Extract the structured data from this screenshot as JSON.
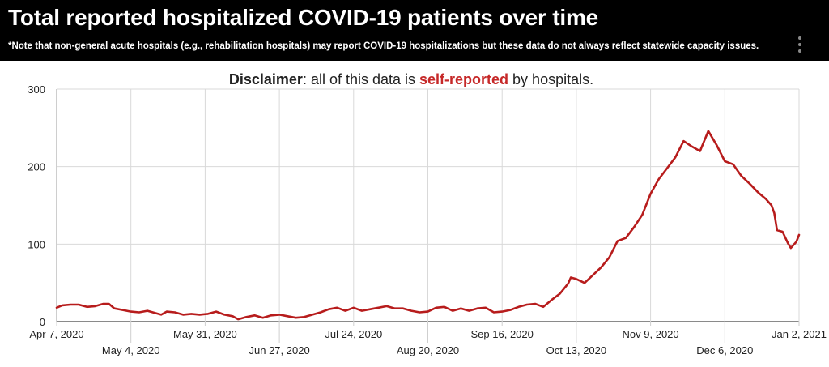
{
  "header": {
    "title": "Total reported hospitalized COVID-19 patients over time",
    "note": "*Note that non-general acute hospitals (e.g., rehabilitation hospitals) may report COVID-19 hospitalizations but these data do not always reflect statewide capacity issues.",
    "menu_icon": "more-vert-icon"
  },
  "disclaimer": {
    "bold": "Disclaimer",
    "text1": ": all of this data is ",
    "highlight": "self-reported",
    "text2": " by hospitals."
  },
  "colors": {
    "line": "#b71c1c",
    "highlight": "#c62828",
    "header_bg": "#000000"
  },
  "chart_data": {
    "type": "line",
    "title": "Total reported hospitalized COVID-19 patients over time",
    "xlabel": "",
    "ylabel": "",
    "ylim": [
      0,
      300
    ],
    "xlim": [
      "2020-04-07",
      "2021-01-02"
    ],
    "yticks": [
      "0",
      "100",
      "200",
      "300"
    ],
    "xticks": [
      {
        "date": "2020-04-07",
        "label": "Apr 7, 2020",
        "row": 1
      },
      {
        "date": "2020-05-04",
        "label": "May 4, 2020",
        "row": 2
      },
      {
        "date": "2020-05-31",
        "label": "May 31, 2020",
        "row": 1
      },
      {
        "date": "2020-06-27",
        "label": "Jun 27, 2020",
        "row": 2
      },
      {
        "date": "2020-07-24",
        "label": "Jul 24, 2020",
        "row": 1
      },
      {
        "date": "2020-08-20",
        "label": "Aug 20, 2020",
        "row": 2
      },
      {
        "date": "2020-09-16",
        "label": "Sep 16, 2020",
        "row": 1
      },
      {
        "date": "2020-10-13",
        "label": "Oct 13, 2020",
        "row": 2
      },
      {
        "date": "2020-11-09",
        "label": "Nov 9, 2020",
        "row": 1
      },
      {
        "date": "2020-12-06",
        "label": "Dec 6, 2020",
        "row": 2
      },
      {
        "date": "2021-01-02",
        "label": "Jan 2, 2021",
        "row": 1
      }
    ],
    "grid": true,
    "series": [
      {
        "color": "#b71c1c",
        "points": [
          [
            "2020-04-07",
            18
          ],
          [
            "2020-04-09",
            21
          ],
          [
            "2020-04-12",
            22
          ],
          [
            "2020-04-15",
            22
          ],
          [
            "2020-04-18",
            19
          ],
          [
            "2020-04-21",
            20
          ],
          [
            "2020-04-24",
            23
          ],
          [
            "2020-04-26",
            23
          ],
          [
            "2020-04-28",
            17
          ],
          [
            "2020-05-01",
            15
          ],
          [
            "2020-05-04",
            13
          ],
          [
            "2020-05-07",
            12
          ],
          [
            "2020-05-10",
            14
          ],
          [
            "2020-05-13",
            11
          ],
          [
            "2020-05-15",
            9
          ],
          [
            "2020-05-17",
            13
          ],
          [
            "2020-05-20",
            12
          ],
          [
            "2020-05-23",
            9
          ],
          [
            "2020-05-26",
            10
          ],
          [
            "2020-05-29",
            9
          ],
          [
            "2020-06-01",
            10
          ],
          [
            "2020-06-04",
            13
          ],
          [
            "2020-06-07",
            9
          ],
          [
            "2020-06-10",
            7
          ],
          [
            "2020-06-12",
            3
          ],
          [
            "2020-06-15",
            6
          ],
          [
            "2020-06-18",
            8
          ],
          [
            "2020-06-21",
            5
          ],
          [
            "2020-06-24",
            8
          ],
          [
            "2020-06-27",
            9
          ],
          [
            "2020-06-30",
            7
          ],
          [
            "2020-07-03",
            5
          ],
          [
            "2020-07-06",
            6
          ],
          [
            "2020-07-09",
            9
          ],
          [
            "2020-07-12",
            12
          ],
          [
            "2020-07-15",
            16
          ],
          [
            "2020-07-18",
            18
          ],
          [
            "2020-07-21",
            14
          ],
          [
            "2020-07-24",
            18
          ],
          [
            "2020-07-27",
            14
          ],
          [
            "2020-07-30",
            16
          ],
          [
            "2020-08-02",
            18
          ],
          [
            "2020-08-05",
            20
          ],
          [
            "2020-08-08",
            17
          ],
          [
            "2020-08-11",
            17
          ],
          [
            "2020-08-14",
            14
          ],
          [
            "2020-08-17",
            12
          ],
          [
            "2020-08-20",
            13
          ],
          [
            "2020-08-23",
            18
          ],
          [
            "2020-08-26",
            19
          ],
          [
            "2020-08-29",
            14
          ],
          [
            "2020-09-01",
            17
          ],
          [
            "2020-09-04",
            14
          ],
          [
            "2020-09-07",
            17
          ],
          [
            "2020-09-10",
            18
          ],
          [
            "2020-09-13",
            12
          ],
          [
            "2020-09-16",
            13
          ],
          [
            "2020-09-19",
            15
          ],
          [
            "2020-09-22",
            19
          ],
          [
            "2020-09-25",
            22
          ],
          [
            "2020-09-28",
            23
          ],
          [
            "2020-10-01",
            19
          ],
          [
            "2020-10-04",
            28
          ],
          [
            "2020-10-07",
            36
          ],
          [
            "2020-10-10",
            49
          ],
          [
            "2020-10-11",
            57
          ],
          [
            "2020-10-13",
            55
          ],
          [
            "2020-10-16",
            50
          ],
          [
            "2020-10-19",
            60
          ],
          [
            "2020-10-22",
            70
          ],
          [
            "2020-10-25",
            83
          ],
          [
            "2020-10-28",
            104
          ],
          [
            "2020-10-31",
            108
          ],
          [
            "2020-11-03",
            122
          ],
          [
            "2020-11-06",
            138
          ],
          [
            "2020-11-09",
            165
          ],
          [
            "2020-11-12",
            184
          ],
          [
            "2020-11-15",
            198
          ],
          [
            "2020-11-18",
            212
          ],
          [
            "2020-11-21",
            233
          ],
          [
            "2020-11-24",
            226
          ],
          [
            "2020-11-27",
            220
          ],
          [
            "2020-11-30",
            246
          ],
          [
            "2020-12-03",
            228
          ],
          [
            "2020-12-06",
            207
          ],
          [
            "2020-12-09",
            203
          ],
          [
            "2020-12-12",
            188
          ],
          [
            "2020-12-15",
            178
          ],
          [
            "2020-12-18",
            167
          ],
          [
            "2020-12-21",
            158
          ],
          [
            "2020-12-23",
            150
          ],
          [
            "2020-12-24",
            140
          ],
          [
            "2020-12-25",
            118
          ],
          [
            "2020-12-27",
            116
          ],
          [
            "2020-12-29",
            101
          ],
          [
            "2020-12-30",
            95
          ],
          [
            "2021-01-01",
            103
          ],
          [
            "2021-01-02",
            112
          ]
        ]
      }
    ]
  }
}
